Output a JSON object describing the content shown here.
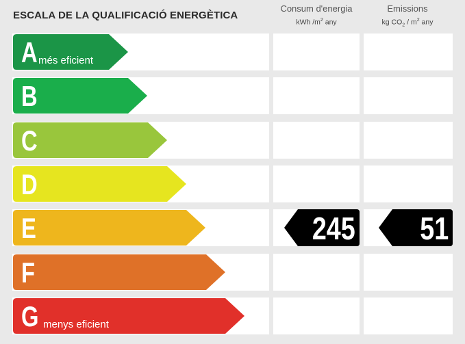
{
  "title": "ESCALA DE LA QUALIFICACIÓ ENERGÈTICA",
  "columns": {
    "consum": {
      "label": "Consum d'energia",
      "unit_pre": "kWh /m",
      "unit_sup": "2",
      "unit_post": "  any"
    },
    "emissions": {
      "label": "Emissions",
      "unit_pre": "kg CO",
      "unit_sub": "2",
      "unit_mid": "  / m",
      "unit_sup": "2",
      "unit_post": "  any"
    }
  },
  "ratings": [
    {
      "letter": "A",
      "label": "més eficient",
      "color": "#1b9547"
    },
    {
      "letter": "B",
      "label": "",
      "color": "#1aae4b"
    },
    {
      "letter": "C",
      "label": "",
      "color": "#99c63c"
    },
    {
      "letter": "D",
      "label": "",
      "color": "#e6e51f"
    },
    {
      "letter": "E",
      "label": "",
      "color": "#eeb61d"
    },
    {
      "letter": "F",
      "label": "",
      "color": "#df7128"
    },
    {
      "letter": "G",
      "label": "menys eficient",
      "color": "#e1302a"
    }
  ],
  "current": {
    "rating": "E",
    "consum_value": "245",
    "emissions_value": "51",
    "tag_color": "#000000"
  }
}
